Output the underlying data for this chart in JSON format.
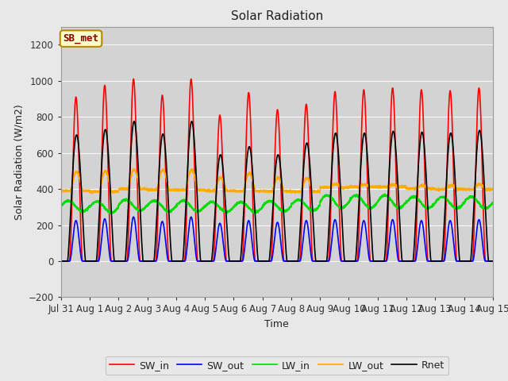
{
  "title": "Solar Radiation",
  "ylabel": "Solar Radiation (W/m2)",
  "xlabel": "Time",
  "annotation_text": "SB_met",
  "ylim": [
    -200,
    1300
  ],
  "fig_bg_color": "#e8e8e8",
  "plot_bg_color": "#d3d3d3",
  "xtick_labels": [
    "Jul 31",
    "Aug 1",
    "Aug 2",
    "Aug 3",
    "Aug 4",
    "Aug 5",
    "Aug 6",
    "Aug 7",
    "Aug 8",
    "Aug 9",
    "Aug 10",
    "Aug 11",
    "Aug 12",
    "Aug 13",
    "Aug 14",
    "Aug 15"
  ],
  "series": {
    "SW_in": {
      "color": "#ff0000",
      "lw": 1.2
    },
    "SW_out": {
      "color": "#0000ff",
      "lw": 1.2
    },
    "LW_in": {
      "color": "#00dd00",
      "lw": 1.2
    },
    "LW_out": {
      "color": "#ffaa00",
      "lw": 1.2
    },
    "Rnet": {
      "color": "#000000",
      "lw": 1.2
    }
  },
  "n_days": 15,
  "pts_per_day": 288,
  "SW_in_peaks": [
    910,
    975,
    1010,
    920,
    1010,
    810,
    935,
    840,
    870,
    940,
    950,
    960,
    950,
    945,
    960
  ],
  "SW_out_peaks": [
    225,
    235,
    245,
    220,
    245,
    210,
    225,
    215,
    225,
    230,
    225,
    230,
    225,
    225,
    230
  ],
  "LW_in_base": [
    305,
    300,
    310,
    305,
    305,
    300,
    300,
    305,
    310,
    330,
    330,
    330,
    325,
    325,
    325
  ],
  "LW_in_amp": [
    30,
    30,
    30,
    30,
    30,
    28,
    28,
    28,
    30,
    35,
    35,
    35,
    32,
    32,
    32
  ],
  "LW_out_base": [
    390,
    385,
    400,
    395,
    395,
    390,
    388,
    388,
    385,
    408,
    412,
    412,
    402,
    398,
    398
  ],
  "LW_out_amp": [
    105,
    115,
    108,
    112,
    112,
    75,
    100,
    75,
    75,
    20,
    12,
    12,
    18,
    22,
    28
  ],
  "Rnet_peaks": [
    700,
    730,
    775,
    705,
    775,
    590,
    635,
    590,
    655,
    710,
    710,
    720,
    715,
    710,
    725
  ]
}
